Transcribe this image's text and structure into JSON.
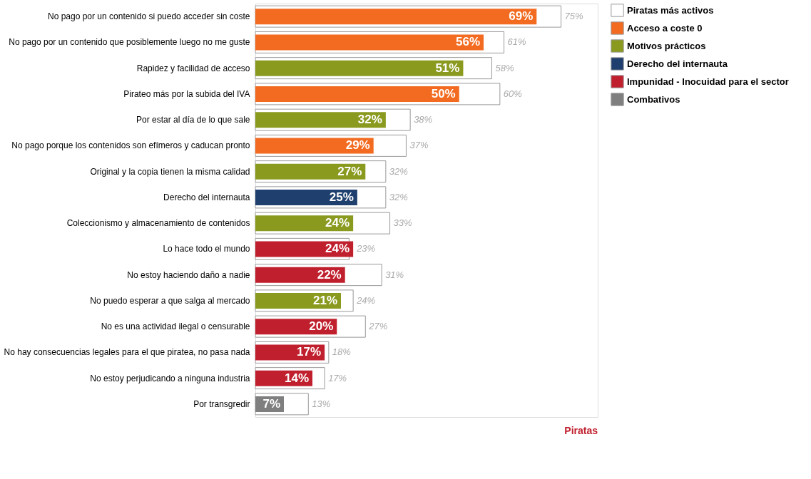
{
  "chart_data": {
    "type": "bar",
    "orientation": "horizontal",
    "data_labels": true,
    "legend": "right",
    "grid": false,
    "categories": [
      "No pago por un contenido si puedo acceder sin coste",
      "No pago por un contenido que posiblemente luego no me guste",
      "Rapidez y facilidad de acceso",
      "Pirateo más por la subida del IVA",
      "Por estar al día de lo que sale",
      "No pago porque los contenidos son efímeros y caducan pronto",
      "Original y la copia tienen la misma calidad",
      "Derecho del internauta",
      "Coleccionismo y almacenamiento de contenidos",
      "Lo hace todo el mundo",
      "No estoy haciendo daño a nadie",
      "No puedo esperar a que salga al mercado",
      "No es una actividad ilegal o censurable",
      "No hay consecuencias legales para el que piratea, no pasa nada",
      "No estoy perjudicando a ninguna industria",
      "Por transgredir"
    ],
    "series": [
      {
        "name": "Piratas más activos",
        "color": "#ffffff",
        "values": [
          75,
          61,
          58,
          60,
          38,
          37,
          32,
          32,
          33,
          23,
          31,
          24,
          27,
          18,
          17,
          13
        ],
        "value_labels": [
          "75%",
          "61%",
          "58%",
          "60%",
          "38%",
          "37%",
          "32%",
          "32%",
          "33%",
          "23%",
          "31%",
          "24%",
          "27%",
          "18%",
          "17%",
          "13%"
        ]
      },
      {
        "name": "Acceso a coste 0",
        "color": "#f26b21",
        "values": [
          69,
          56,
          null,
          50,
          null,
          29,
          null,
          null,
          null,
          null,
          null,
          null,
          null,
          null,
          null,
          null
        ],
        "value_labels": [
          "69%",
          "56%",
          null,
          "50%",
          null,
          "29%",
          null,
          null,
          null,
          null,
          null,
          null,
          null,
          null,
          null,
          null
        ]
      },
      {
        "name": "Motivos prácticos",
        "color": "#8a9a1f",
        "values": [
          null,
          null,
          51,
          null,
          32,
          null,
          27,
          null,
          24,
          null,
          null,
          21,
          null,
          null,
          null,
          null
        ],
        "value_labels": [
          null,
          null,
          "51%",
          null,
          "32%",
          null,
          "27%",
          null,
          "24%",
          null,
          null,
          "21%",
          null,
          null,
          null,
          null
        ]
      },
      {
        "name": "Derecho del internauta",
        "color": "#1f3f6e",
        "values": [
          null,
          null,
          null,
          null,
          null,
          null,
          null,
          25,
          null,
          null,
          null,
          null,
          null,
          null,
          null,
          null
        ],
        "value_labels": [
          null,
          null,
          null,
          null,
          null,
          null,
          null,
          "25%",
          null,
          null,
          null,
          null,
          null,
          null,
          null,
          null
        ]
      },
      {
        "name": "Impunidad - Inocuidad para el sector",
        "color": "#c0202e",
        "values": [
          null,
          null,
          null,
          null,
          null,
          null,
          null,
          null,
          null,
          24,
          22,
          null,
          20,
          17,
          14,
          null
        ],
        "value_labels": [
          null,
          null,
          null,
          null,
          null,
          null,
          null,
          null,
          null,
          "24%",
          "22%",
          null,
          "20%",
          "17%",
          "14%",
          null
        ]
      },
      {
        "name": "Combativos",
        "color": "#7f7f7f",
        "values": [
          null,
          null,
          null,
          null,
          null,
          null,
          null,
          null,
          null,
          null,
          null,
          null,
          null,
          null,
          null,
          7
        ],
        "value_labels": [
          null,
          null,
          null,
          null,
          null,
          null,
          null,
          null,
          null,
          null,
          null,
          null,
          null,
          null,
          null,
          "7%"
        ]
      }
    ],
    "annotations": [
      "Piratas"
    ]
  }
}
